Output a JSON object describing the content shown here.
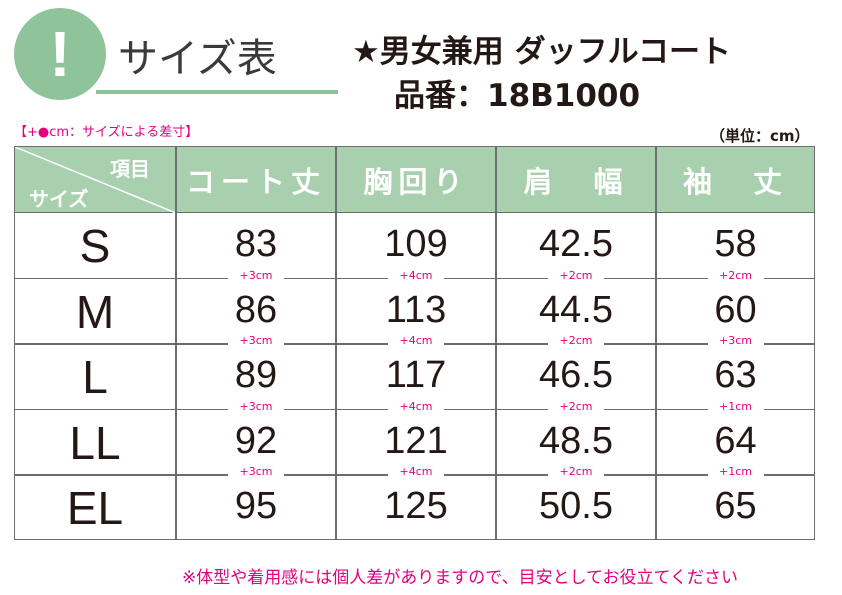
{
  "badge": {
    "glyph": "!"
  },
  "header": {
    "title": "サイズ表",
    "product_name": "★男女兼用 ダッフルコート",
    "product_number": "品番：18B1000"
  },
  "notes": {
    "legend": "【+●cm：サイズによる差寸】",
    "unit": "（単位：cm）",
    "footer": "※体型や着用感には個人差がありますので、目安としてお役立てください"
  },
  "table": {
    "corner_item": "項目",
    "corner_size": "サイズ",
    "columns": [
      "コート丈",
      "胸回り",
      "肩　幅",
      "袖　丈"
    ],
    "rows": [
      {
        "size": "S",
        "values": [
          "83",
          "109",
          "42.5",
          "58"
        ]
      },
      {
        "size": "M",
        "values": [
          "86",
          "113",
          "44.5",
          "60"
        ]
      },
      {
        "size": "L",
        "values": [
          "89",
          "117",
          "46.5",
          "63"
        ]
      },
      {
        "size": "LL",
        "values": [
          "92",
          "121",
          "48.5",
          "64"
        ]
      },
      {
        "size": "EL",
        "values": [
          "95",
          "125",
          "50.5",
          "65"
        ]
      }
    ],
    "increments": [
      [
        "+3cm",
        "+4cm",
        "+2cm",
        "+2cm"
      ],
      [
        "+3cm",
        "+4cm",
        "+2cm",
        "+3cm"
      ],
      [
        "+3cm",
        "+4cm",
        "+2cm",
        "+1cm"
      ],
      [
        "+3cm",
        "+4cm",
        "+2cm",
        "+1cm"
      ]
    ]
  },
  "colors": {
    "accent_green": "#8fc49a",
    "header_green": "#a9d0ae",
    "note_pink": "#e4007f",
    "text": "#231815"
  }
}
